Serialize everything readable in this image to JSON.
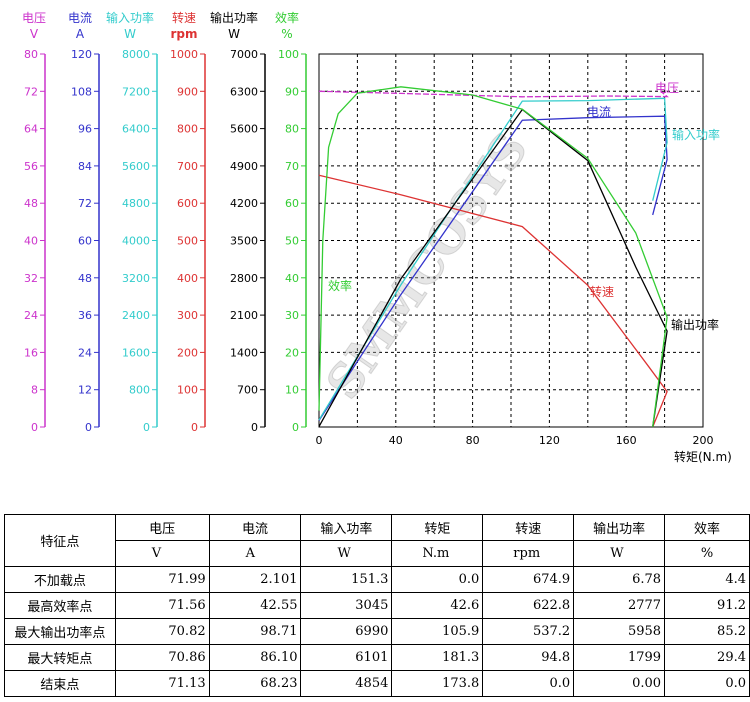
{
  "colors": {
    "voltage": "#cc33cc",
    "current": "#3333cc",
    "input_power": "#33cccc",
    "speed": "#dd3333",
    "output_power": "#000000",
    "efficiency": "#33cc33"
  },
  "chart_data": {
    "type": "line",
    "x_label": "转矩(N.m)",
    "x_ticks": [
      "0",
      "40",
      "80",
      "120",
      "160",
      "200"
    ],
    "x_range": [
      0,
      200
    ],
    "watermark": "SMMCOSYS",
    "axes": [
      {
        "key": "voltage",
        "name": "电压",
        "unit": "V",
        "range": [
          0,
          80
        ],
        "ticks": [
          "80",
          "72",
          "64",
          "56",
          "48",
          "40",
          "32",
          "24",
          "16",
          "8",
          "0"
        ],
        "color": "#cc33cc"
      },
      {
        "key": "current",
        "name": "电流",
        "unit": "A",
        "range": [
          0,
          120
        ],
        "ticks": [
          "120",
          "108",
          "96",
          "84",
          "72",
          "60",
          "48",
          "36",
          "24",
          "12",
          "0"
        ],
        "color": "#3333cc"
      },
      {
        "key": "input_power",
        "name": "输入功率",
        "unit": "W",
        "range": [
          0,
          8000
        ],
        "ticks": [
          "8000",
          "7200",
          "6400",
          "5600",
          "4800",
          "4000",
          "3200",
          "2400",
          "1600",
          "800",
          "0"
        ],
        "color": "#33cccc"
      },
      {
        "key": "speed",
        "name": "转速",
        "unit": "rpm",
        "range": [
          0,
          1000
        ],
        "ticks": [
          "1000",
          "900",
          "800",
          "700",
          "600",
          "500",
          "400",
          "300",
          "200",
          "100",
          "0"
        ],
        "color": "#dd3333"
      },
      {
        "key": "output_power",
        "name": "输出功率",
        "unit": "W",
        "range": [
          0,
          7000
        ],
        "ticks": [
          "7000",
          "6300",
          "5600",
          "4900",
          "4200",
          "3500",
          "2800",
          "2100",
          "1400",
          "700",
          "0"
        ],
        "color": "#000000"
      },
      {
        "key": "efficiency",
        "name": "效率",
        "unit": "%",
        "range": [
          0,
          100
        ],
        "ticks": [
          "100",
          "90",
          "80",
          "70",
          "60",
          "50",
          "40",
          "30",
          "20",
          "10",
          "0"
        ],
        "color": "#33cc33"
      }
    ],
    "series": [
      {
        "key": "voltage",
        "name": "电压",
        "label": "电压",
        "axis": "voltage",
        "points": [
          [
            0,
            71.99
          ],
          [
            42.6,
            71.56
          ],
          [
            105.9,
            70.82
          ],
          [
            150,
            71.0
          ],
          [
            181.3,
            70.86
          ],
          [
            178,
            72.0
          ]
        ]
      },
      {
        "key": "current",
        "name": "电流",
        "label": "电流",
        "axis": "current",
        "points": [
          [
            0,
            2.1
          ],
          [
            42.6,
            42.55
          ],
          [
            105.9,
            98.71
          ],
          [
            140,
            99.5
          ],
          [
            180,
            100
          ],
          [
            181.3,
            86.1
          ],
          [
            173.8,
            68.23
          ]
        ]
      },
      {
        "key": "input_power",
        "name": "输入功率",
        "label": "输入功率",
        "axis": "input_power",
        "points": [
          [
            0,
            151.3
          ],
          [
            42.6,
            3045
          ],
          [
            105.9,
            6990
          ],
          [
            140,
            7000
          ],
          [
            180,
            7050
          ],
          [
            181.3,
            6101
          ],
          [
            173.8,
            4854
          ]
        ]
      },
      {
        "key": "speed",
        "name": "转速",
        "label": "转速",
        "axis": "speed",
        "points": [
          [
            0,
            674.9
          ],
          [
            42.6,
            622.8
          ],
          [
            105.9,
            537.2
          ],
          [
            140,
            380
          ],
          [
            172,
            160
          ],
          [
            181.3,
            94.8
          ],
          [
            173.8,
            0
          ]
        ]
      },
      {
        "key": "output_power",
        "name": "输出功率",
        "label": "输出功率",
        "axis": "output_power",
        "points": [
          [
            0,
            6.78
          ],
          [
            42.6,
            2777
          ],
          [
            105.9,
            5958
          ],
          [
            140,
            5000
          ],
          [
            165,
            3000
          ],
          [
            181.3,
            1799
          ],
          [
            173.8,
            0
          ]
        ]
      },
      {
        "key": "efficiency",
        "name": "效率",
        "label": "效率",
        "axis": "efficiency",
        "points": [
          [
            0,
            4.4
          ],
          [
            2,
            50
          ],
          [
            5,
            75
          ],
          [
            10,
            84
          ],
          [
            20,
            89.5
          ],
          [
            42.6,
            91.2
          ],
          [
            80,
            89
          ],
          [
            105.9,
            85.2
          ],
          [
            140,
            72
          ],
          [
            165,
            52
          ],
          [
            181.3,
            29.4
          ],
          [
            173.8,
            0
          ]
        ]
      }
    ]
  },
  "table": {
    "headers": [
      "特征点",
      "电压",
      "电流",
      "输入功率",
      "转矩",
      "转速",
      "输出功率",
      "效率"
    ],
    "units": [
      "V",
      "A",
      "W",
      "N.m",
      "rpm",
      "W",
      "%"
    ],
    "rows": [
      {
        "label": "不加载点",
        "values": [
          "71.99",
          "2.101",
          "151.3",
          "0.0",
          "674.9",
          "6.78",
          "4.4"
        ]
      },
      {
        "label": "最高效率点",
        "values": [
          "71.56",
          "42.55",
          "3045",
          "42.6",
          "622.8",
          "2777",
          "91.2"
        ]
      },
      {
        "label": "最大输出功率点",
        "values": [
          "70.82",
          "98.71",
          "6990",
          "105.9",
          "537.2",
          "5958",
          "85.2"
        ]
      },
      {
        "label": "最大转矩点",
        "values": [
          "70.86",
          "86.10",
          "6101",
          "181.3",
          "94.8",
          "1799",
          "29.4"
        ]
      },
      {
        "label": "结束点",
        "values": [
          "71.13",
          "68.23",
          "4854",
          "173.8",
          "0.0",
          "0.00",
          "0.0"
        ]
      }
    ]
  }
}
